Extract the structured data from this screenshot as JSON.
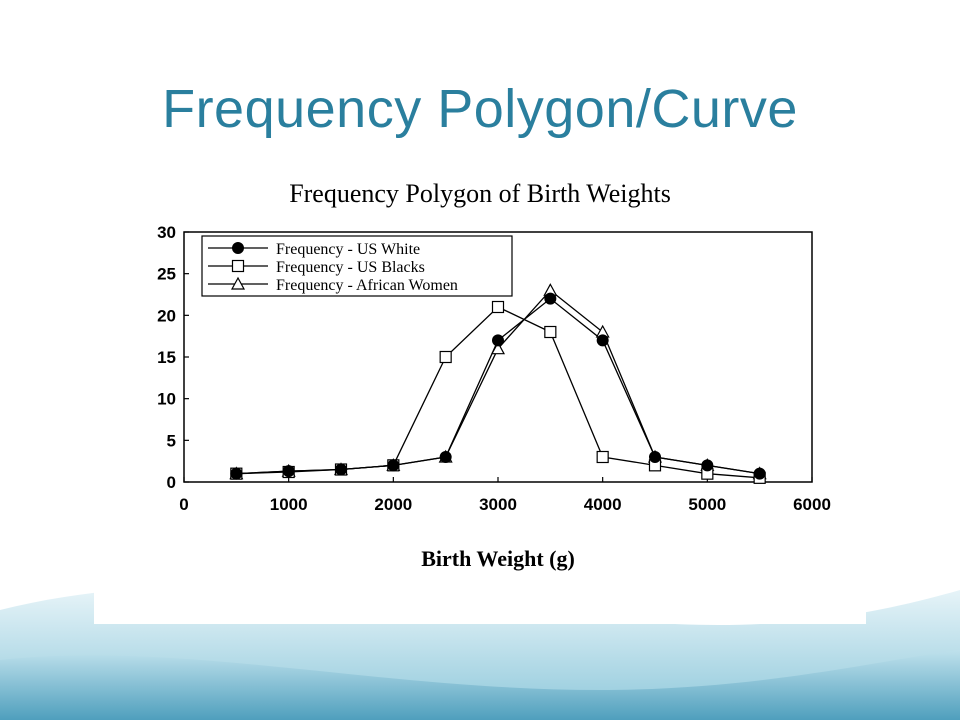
{
  "slide": {
    "title": "Frequency Polygon/Curve"
  },
  "colors": {
    "title": "#2a7f9e",
    "wave_light": "#d6edf3",
    "wave_mid": "#9fd0e0",
    "wave_dark": "#5aa9c4"
  },
  "chart_data": {
    "type": "line",
    "title": "Frequency Polygon of Birth Weights",
    "xlabel": "Birth Weight (g)",
    "ylabel": "",
    "xlim": [
      0,
      6000
    ],
    "ylim": [
      0,
      30
    ],
    "xticks": [
      0,
      1000,
      2000,
      3000,
      4000,
      5000,
      6000
    ],
    "yticks": [
      0,
      5,
      10,
      15,
      20,
      25,
      30
    ],
    "grid": false,
    "legend_position": "top-left",
    "series": [
      {
        "name": "Frequency - US White",
        "marker": "filled-circle",
        "x": [
          500,
          1000,
          1500,
          2000,
          2500,
          3000,
          3500,
          4000,
          4500,
          5000,
          5500
        ],
        "y": [
          1,
          1.3,
          1.5,
          2,
          3,
          17,
          22,
          17,
          3,
          2,
          1
        ]
      },
      {
        "name": "Frequency - US Blacks",
        "marker": "open-square",
        "x": [
          500,
          1000,
          1500,
          2000,
          2500,
          3000,
          3500,
          4000,
          4500,
          5000,
          5500
        ],
        "y": [
          1,
          1.2,
          1.5,
          2,
          15,
          21,
          18,
          3,
          2,
          1,
          0.5
        ]
      },
      {
        "name": "Frequency - African Women",
        "marker": "open-triangle",
        "x": [
          500,
          1000,
          1500,
          2000,
          2500,
          3000,
          3500,
          4000,
          4500,
          5000,
          5500
        ],
        "y": [
          1,
          1.3,
          1.5,
          2,
          3,
          16,
          23,
          18,
          3,
          2,
          1
        ]
      }
    ]
  }
}
